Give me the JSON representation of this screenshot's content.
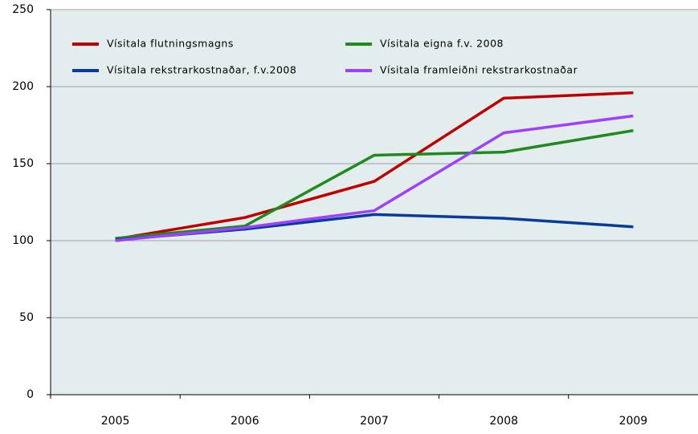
{
  "chart_data": {
    "type": "line",
    "categories": [
      "2005",
      "2006",
      "2007",
      "2008",
      "2009"
    ],
    "series": [
      {
        "name": "Vísitala flutningsmagns",
        "color": "#c00000",
        "values": [
          101,
          115,
          138.5,
          192.5,
          196
        ]
      },
      {
        "name": "Vísitala eigna f.v. 2008",
        "color": "#1f8a1f",
        "values": [
          101.5,
          109.5,
          155.5,
          157.5,
          171.5
        ]
      },
      {
        "name": "Vísitala rekstrarkostnaðar, f.v.2008",
        "color": "#0a3a9c",
        "values": [
          100.5,
          107.5,
          117,
          114.5,
          109
        ]
      },
      {
        "name": "Vísitala framleiðni rekstrarkostnaðar",
        "color": "#a040ff",
        "values": [
          100,
          108.5,
          119.5,
          170,
          181
        ]
      }
    ],
    "ylim": [
      0,
      250
    ],
    "yticks": [
      0,
      50,
      100,
      150,
      200,
      250
    ],
    "grid": true,
    "legend": "top"
  }
}
